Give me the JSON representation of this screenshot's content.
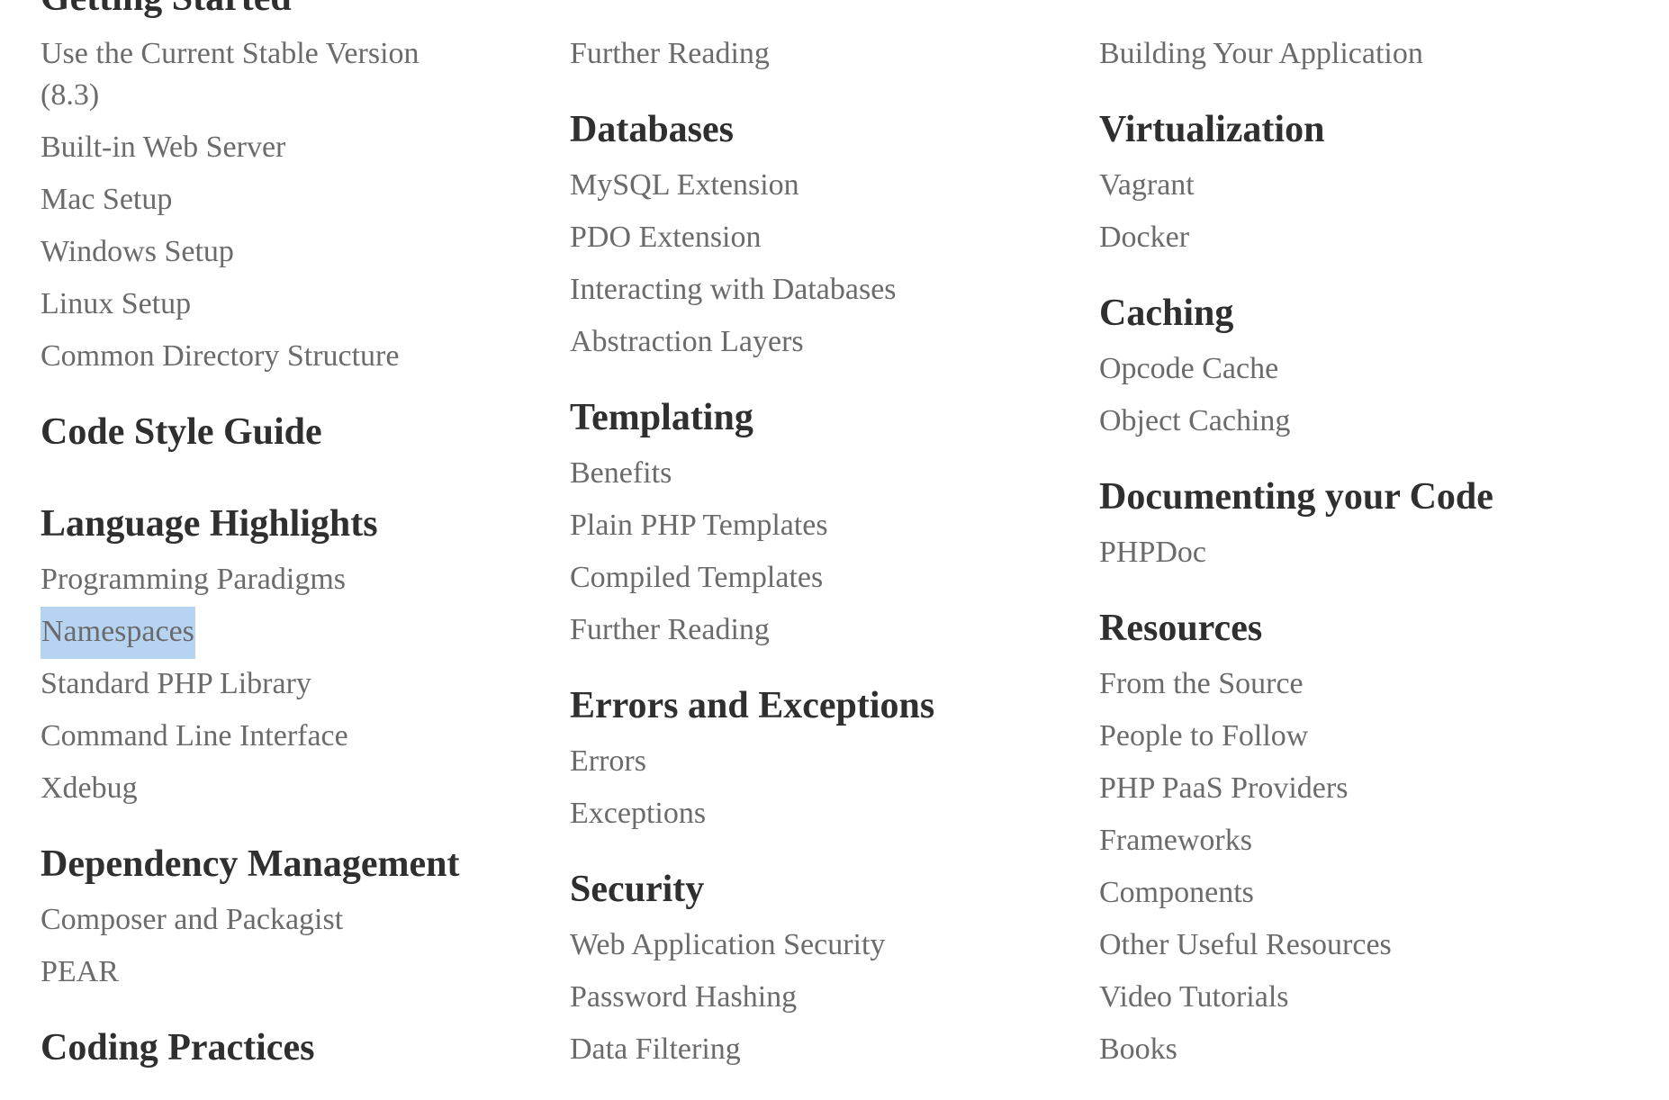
{
  "columns": [
    {
      "sections": [
        {
          "title": "Getting Started",
          "items": [
            "Use the Current Stable Version (8.3)",
            "Built-in Web Server",
            "Mac Setup",
            "Windows Setup",
            "Linux Setup",
            "Common Directory Structure"
          ]
        },
        {
          "title": "Code Style Guide",
          "items": []
        },
        {
          "title": "Language Highlights",
          "items": [
            "Programming Paradigms",
            "Namespaces",
            "Standard PHP Library",
            "Command Line Interface",
            "Xdebug"
          ]
        },
        {
          "title": "Dependency Management",
          "items": [
            "Composer and Packagist",
            "PEAR"
          ]
        },
        {
          "title": "Coding Practices",
          "items": []
        }
      ]
    },
    {
      "sections": [
        {
          "title": "",
          "items": [
            "Further Reading"
          ]
        },
        {
          "title": "Databases",
          "items": [
            "MySQL Extension",
            "PDO Extension",
            "Interacting with Databases",
            "Abstraction Layers"
          ]
        },
        {
          "title": "Templating",
          "items": [
            "Benefits",
            "Plain PHP Templates",
            "Compiled Templates",
            "Further Reading"
          ]
        },
        {
          "title": "Errors and Exceptions",
          "items": [
            "Errors",
            "Exceptions"
          ]
        },
        {
          "title": "Security",
          "items": [
            "Web Application Security",
            "Password Hashing",
            "Data Filtering"
          ]
        }
      ]
    },
    {
      "sections": [
        {
          "title": "",
          "items": [
            "Building Your Application"
          ]
        },
        {
          "title": "Virtualization",
          "items": [
            "Vagrant",
            "Docker"
          ]
        },
        {
          "title": "Caching",
          "items": [
            "Opcode Cache",
            "Object Caching"
          ]
        },
        {
          "title": "Documenting your Code",
          "items": [
            "PHPDoc"
          ]
        },
        {
          "title": "Resources",
          "items": [
            "From the Source",
            "People to Follow",
            "PHP PaaS Providers",
            "Frameworks",
            "Components",
            "Other Useful Resources",
            "Video Tutorials",
            "Books"
          ]
        }
      ]
    }
  ],
  "selected_item": "Namespaces",
  "colors": {
    "heading": "#2f2f2f",
    "link": "#6b6b6b",
    "selection_highlight": "#b7d3f2"
  }
}
